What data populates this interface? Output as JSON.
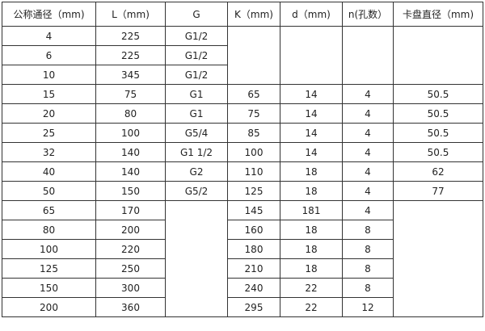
{
  "table": {
    "headers": [
      "公称通径（mm)",
      "L（mm)",
      "G",
      "K（mm)",
      "d（mm)",
      "n(孔数）",
      "卡盘直径（mm)"
    ],
    "rows": [
      [
        "4",
        "225",
        "G1/2",
        "",
        "",
        "",
        ""
      ],
      [
        "6",
        "225",
        "G1/2",
        null,
        null,
        null,
        null
      ],
      [
        "10",
        "345",
        "G1/2",
        null,
        null,
        null,
        null
      ],
      [
        "15",
        "75",
        "G1",
        "65",
        "14",
        "4",
        "50.5"
      ],
      [
        "20",
        "80",
        "G1",
        "75",
        "14",
        "4",
        "50.5"
      ],
      [
        "25",
        "100",
        "G5/4",
        "85",
        "14",
        "4",
        "50.5"
      ],
      [
        "32",
        "140",
        "G1  1/2",
        "100",
        "14",
        "4",
        "50.5"
      ],
      [
        "40",
        "140",
        "G2",
        "110",
        "18",
        "4",
        "62"
      ],
      [
        "50",
        "150",
        "G5/2",
        "125",
        "18",
        "4",
        "77"
      ],
      [
        "65",
        "170",
        "",
        "145",
        "181",
        "4",
        ""
      ],
      [
        "80",
        "200",
        null,
        "160",
        "18",
        "8",
        null
      ],
      [
        "100",
        "220",
        null,
        "180",
        "18",
        "8",
        null
      ],
      [
        "125",
        "250",
        null,
        "210",
        "18",
        "8",
        null
      ],
      [
        "150",
        "300",
        null,
        "240",
        "22",
        "8",
        null
      ],
      [
        "200",
        "360",
        null,
        "295",
        "22",
        "12",
        null
      ]
    ]
  }
}
